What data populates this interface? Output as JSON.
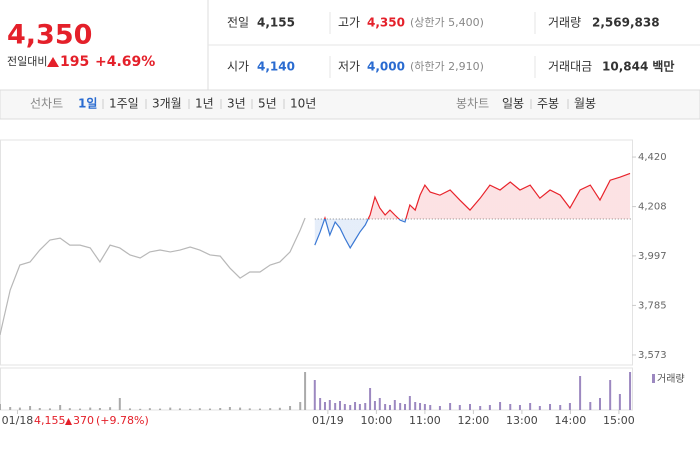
{
  "header": {
    "price": "4,350",
    "change_label": "전일대비",
    "change": "195",
    "change_pct": "+4.69%",
    "color": "#e4202a"
  },
  "stats": [
    {
      "label": "전일",
      "value": "4,155",
      "color": "#333333"
    },
    {
      "label": "고가",
      "value": "4,350",
      "note": "(상한가 5,400)",
      "color": "#e4202a"
    },
    {
      "label": "거래량",
      "value": "2,569,838",
      "color": "#333333"
    },
    {
      "label": "시가",
      "value": "4,140",
      "color": "#2a6bd0"
    },
    {
      "label": "저가",
      "value": "4,000",
      "note": "(하한가 2,910)",
      "color": "#2a6bd0"
    },
    {
      "label": "거래대금",
      "value": "10,844",
      "unit": "백만",
      "color": "#333333"
    }
  ],
  "tabs": {
    "line_label": "선차트",
    "line": [
      "1일",
      "1주일",
      "3개월",
      "1년",
      "3년",
      "5년",
      "10년"
    ],
    "selected": 0,
    "candle_label": "봉차트",
    "candle": [
      "일봉",
      "주봉",
      "월봉"
    ]
  },
  "chart_data": {
    "type": "line",
    "xlim": [
      2.24,
      15.27
    ],
    "xticks": [
      {
        "value": 2.6,
        "label": "01/18"
      },
      {
        "value": 9,
        "label": "01/19"
      },
      {
        "value": 10,
        "label": "10:00"
      },
      {
        "value": 11,
        "label": "11:00"
      },
      {
        "value": 12,
        "label": "12:00"
      },
      {
        "value": 13,
        "label": "13:00"
      },
      {
        "value": 14,
        "label": "14:00"
      },
      {
        "value": 15,
        "label": "15:00"
      }
    ],
    "ylim": [
      3530,
      4493
    ],
    "yticks": [
      {
        "value": 4420,
        "label": "4,420"
      },
      {
        "value": 4208,
        "label": "4,208"
      },
      {
        "value": 3997,
        "label": "3,997"
      },
      {
        "value": 3785,
        "label": "3,785"
      },
      {
        "value": 3573,
        "label": "3,573"
      }
    ],
    "baseline": 4155,
    "series": [
      {
        "color": "#b8b8b8",
        "x": [
          2.24,
          2.45,
          2.65,
          2.86,
          3.06,
          3.27,
          3.48,
          3.68,
          3.89,
          4.1,
          4.3,
          4.51,
          4.71,
          4.92,
          5.13,
          5.33,
          5.54,
          5.75,
          5.95,
          6.16,
          6.36,
          6.57,
          6.78,
          6.98,
          7.19,
          7.39,
          7.6,
          7.81,
          8.01,
          8.22,
          8.43,
          8.53
        ],
        "values": [
          3659,
          3851,
          3958,
          3971,
          4022,
          4065,
          4073,
          4043,
          4043,
          4031,
          3971,
          4043,
          4031,
          4001,
          3988,
          4014,
          4022,
          4014,
          4022,
          4035,
          4022,
          4001,
          3996,
          3945,
          3902,
          3928,
          3928,
          3958,
          3971,
          4014,
          4108,
          4159
        ]
      },
      {
        "color": "#e8232b",
        "below_color": "#3a78d4",
        "x": [
          8.73,
          8.84,
          8.94,
          9.04,
          9.15,
          9.25,
          9.35,
          9.46,
          9.56,
          9.66,
          9.77,
          9.87,
          9.97,
          10.07,
          10.18,
          10.28,
          10.38,
          10.49,
          10.59,
          10.69,
          10.8,
          10.9,
          11.0,
          11.11,
          11.31,
          11.52,
          11.72,
          11.93,
          12.14,
          12.34,
          12.55,
          12.76,
          12.96,
          13.17,
          13.37,
          13.58,
          13.79,
          13.99,
          14.2,
          14.41,
          14.61,
          14.82,
          15.02,
          15.23
        ],
        "values": [
          4043,
          4099,
          4159,
          4086,
          4142,
          4116,
          4073,
          4031,
          4065,
          4099,
          4129,
          4172,
          4249,
          4202,
          4172,
          4193,
          4172,
          4150,
          4142,
          4215,
          4193,
          4257,
          4300,
          4270,
          4257,
          4279,
          4236,
          4193,
          4244,
          4300,
          4279,
          4313,
          4279,
          4300,
          4244,
          4279,
          4257,
          4202,
          4279,
          4300,
          4236,
          4321,
          4334,
          4350
        ]
      }
    ],
    "volume": {
      "name": "거래량",
      "ylim": [
        0,
        200000
      ],
      "legend_color": "#9c88c0",
      "series": [
        {
          "color": "#aaaaaa",
          "values": [
            30000,
            15000,
            12000,
            20000,
            10000,
            8000,
            25000,
            9000,
            7000,
            12000,
            10000,
            14000,
            60000,
            8000,
            6000,
            9000,
            7000,
            12000,
            8000,
            6000,
            9000,
            7000,
            10000,
            15000,
            12000,
            8000,
            7000,
            9000,
            11000,
            20000,
            40000,
            190000
          ]
        },
        {
          "color": "#9c88c0",
          "values": [
            150000,
            60000,
            40000,
            50000,
            35000,
            45000,
            30000,
            25000,
            40000,
            30000,
            35000,
            110000,
            45000,
            60000,
            30000,
            25000,
            50000,
            35000,
            30000,
            70000,
            40000,
            35000,
            30000,
            25000,
            20000,
            35000,
            25000,
            30000,
            20000,
            25000,
            40000,
            30000,
            25000,
            35000,
            20000,
            30000,
            25000,
            35000,
            170000,
            40000,
            60000,
            150000,
            80000,
            190000
          ]
        }
      ]
    },
    "prev_note": {
      "price": "4,155",
      "change": "370",
      "change_pct": "(+9.78%)",
      "color": "#e4202a"
    }
  }
}
